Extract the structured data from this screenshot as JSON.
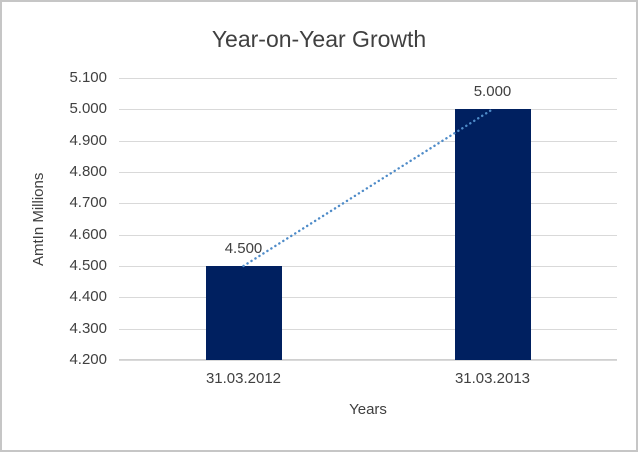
{
  "window": {
    "background": "#ffffff",
    "border_color": "#c6c6c6"
  },
  "chart_data": {
    "type": "bar",
    "title": "Year-on-Year Growth",
    "xlabel": "Years",
    "ylabel": "AmtIn Millions",
    "categories": [
      "31.03.2012",
      "31.03.2013"
    ],
    "values": [
      4.5,
      5.0
    ],
    "data_labels": [
      "4.500",
      "5.000"
    ],
    "ylim": [
      4.2,
      5.1
    ],
    "ytick_step": 0.1,
    "ytick_labels": [
      "4.200",
      "4.300",
      "4.400",
      "4.500",
      "4.600",
      "4.700",
      "4.800",
      "4.900",
      "5.000",
      "5.100"
    ],
    "grid": true,
    "legend": "none",
    "bar_color": "#002060",
    "gridline_color": "#d9d9d9",
    "text_color": "#404040",
    "trendline": {
      "style": "dotted",
      "color": "#4e8bc8",
      "from_category": "31.03.2012",
      "to_category": "31.03.2013"
    }
  }
}
